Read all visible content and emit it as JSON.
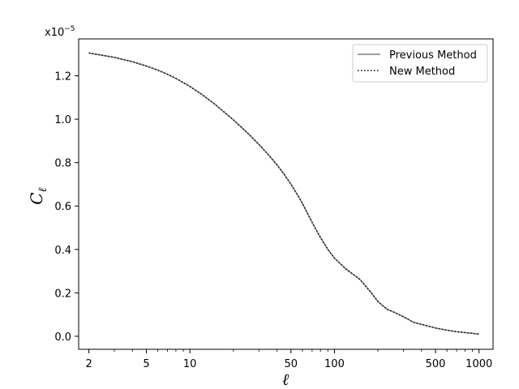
{
  "chart_data": {
    "type": "line",
    "xscale": "log",
    "xlim": [
      1.7,
      1250
    ],
    "ylim": [
      -0.06,
      1.37
    ],
    "y_scale_factor_label": "x10",
    "y_scale_factor_exponent": "−5",
    "xlabel": "ℓ",
    "ylabel_main": "C",
    "ylabel_sub": "ℓ",
    "x_ticks": [
      {
        "value": 2,
        "label": "2"
      },
      {
        "value": 5,
        "label": "5"
      },
      {
        "value": 10,
        "label": "10"
      },
      {
        "value": 50,
        "label": "50"
      },
      {
        "value": 100,
        "label": "100"
      },
      {
        "value": 500,
        "label": "500"
      },
      {
        "value": 1000,
        "label": "1000"
      }
    ],
    "y_ticks": [
      {
        "value": 0.0,
        "label": "0.0"
      },
      {
        "value": 0.2,
        "label": "0.2"
      },
      {
        "value": 0.4,
        "label": "0.4"
      },
      {
        "value": 0.6,
        "label": "0.6"
      },
      {
        "value": 0.8,
        "label": "0.8"
      },
      {
        "value": 1.0,
        "label": "1.0"
      },
      {
        "value": 1.2,
        "label": "1.2"
      }
    ],
    "legend_position": "top-right",
    "grid": false,
    "series": [
      {
        "name": "Previous Method",
        "style": "solid",
        "color": "#808080",
        "x": [
          2,
          3,
          4,
          5,
          6,
          7,
          8,
          10,
          12,
          15,
          20,
          25,
          30,
          35,
          40,
          45,
          50,
          55,
          60,
          70,
          80,
          90,
          100,
          120,
          150,
          180,
          200,
          230,
          250,
          300,
          350,
          400,
          500,
          600,
          700,
          800,
          1000
        ],
        "y": [
          1.305,
          1.285,
          1.265,
          1.245,
          1.226,
          1.207,
          1.188,
          1.151,
          1.116,
          1.067,
          0.997,
          0.937,
          0.884,
          0.835,
          0.79,
          0.745,
          0.7,
          0.656,
          0.612,
          0.525,
          0.455,
          0.4,
          0.36,
          0.31,
          0.262,
          0.2,
          0.16,
          0.125,
          0.115,
          0.09,
          0.065,
          0.055,
          0.038,
          0.028,
          0.021,
          0.017,
          0.01
        ]
      },
      {
        "name": "New Method",
        "style": "dotted",
        "color": "#000000",
        "x": [
          2,
          3,
          4,
          5,
          6,
          7,
          8,
          10,
          12,
          15,
          20,
          25,
          30,
          35,
          40,
          45,
          50,
          55,
          60,
          70,
          80,
          90,
          100,
          120,
          150,
          180,
          200,
          230,
          250,
          300,
          350,
          400,
          500,
          600,
          700,
          800,
          1000
        ],
        "y": [
          1.305,
          1.285,
          1.265,
          1.245,
          1.226,
          1.207,
          1.188,
          1.151,
          1.116,
          1.067,
          0.997,
          0.937,
          0.884,
          0.835,
          0.79,
          0.745,
          0.7,
          0.656,
          0.612,
          0.525,
          0.455,
          0.4,
          0.36,
          0.31,
          0.262,
          0.2,
          0.16,
          0.125,
          0.115,
          0.09,
          0.065,
          0.055,
          0.038,
          0.028,
          0.021,
          0.017,
          0.01
        ]
      }
    ]
  }
}
